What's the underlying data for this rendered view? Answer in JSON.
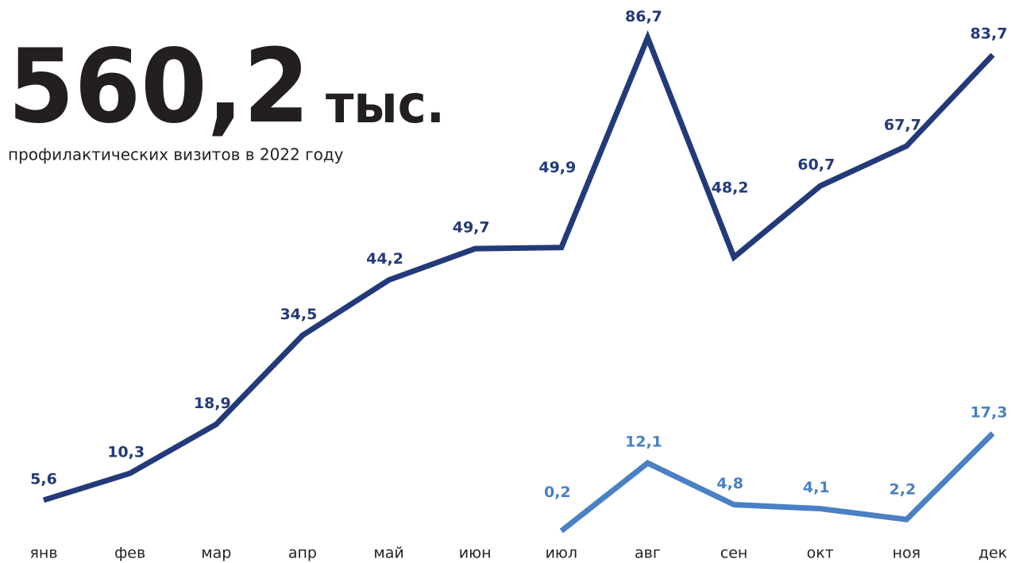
{
  "chart_data": {
    "type": "line",
    "title": "560,2",
    "title_suffix": "тыс.",
    "subtitle": "профилактических визитов в 2022 году",
    "categories": [
      "янв",
      "фев",
      "мар",
      "апр",
      "май",
      "июн",
      "июл",
      "авг",
      "сен",
      "окт",
      "ноя",
      "дек"
    ],
    "series": [
      {
        "color": "#233a7a",
        "values": [
          5.6,
          10.3,
          18.9,
          34.5,
          44.2,
          49.7,
          49.9,
          86.7,
          48.2,
          60.7,
          67.7,
          83.7
        ],
        "value_labels": [
          "5,6",
          "10,3",
          "18,9",
          "34,5",
          "44,2",
          "49,7",
          "49,9",
          "86,7",
          "48,2",
          "60,7",
          "67,7",
          "83,7"
        ]
      },
      {
        "color": "#4a80c4",
        "values": [
          null,
          null,
          null,
          null,
          null,
          null,
          0.2,
          12.1,
          4.8,
          4.1,
          2.2,
          17.3
        ],
        "value_labels": [
          null,
          null,
          null,
          null,
          null,
          null,
          "0,2",
          "12,1",
          "4,8",
          "4,1",
          "2,2",
          "17,3"
        ]
      }
    ]
  }
}
